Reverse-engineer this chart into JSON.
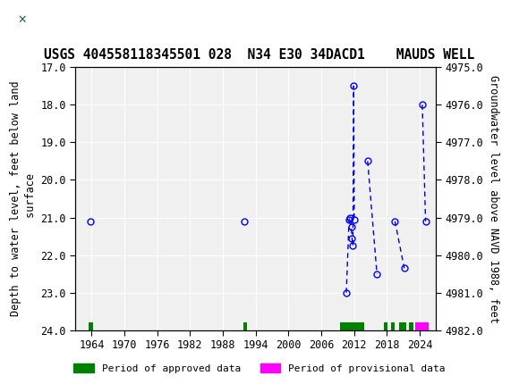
{
  "title": "USGS 404558118345501 028  N34 E30 34DACD1    MAUDS WELL",
  "ylabel_left": "Depth to water level, feet below land\n surface",
  "ylabel_right": "Groundwater level above NAVD 1988, feet",
  "xlim": [
    1961,
    2027
  ],
  "ylim_left": [
    17.0,
    24.0
  ],
  "ylim_right": [
    4982.0,
    4975.0
  ],
  "xticks": [
    1964,
    1970,
    1976,
    1982,
    1988,
    1994,
    2000,
    2006,
    2012,
    2018,
    2024
  ],
  "yticks_left": [
    17.0,
    18.0,
    19.0,
    20.0,
    21.0,
    22.0,
    23.0,
    24.0
  ],
  "yticks_right": [
    4982.0,
    4981.0,
    4980.0,
    4979.0,
    4978.0,
    4977.0,
    4976.0,
    4975.0
  ],
  "data_points_x": [
    1963.7,
    1992.0,
    2010.6,
    2011.1,
    2011.3,
    2011.5,
    2011.65,
    2011.8,
    2011.95,
    2012.05,
    2014.5,
    2016.2,
    2019.5,
    2021.2,
    2024.5,
    2025.1
  ],
  "data_points_y": [
    21.1,
    21.1,
    23.0,
    21.05,
    21.0,
    21.25,
    21.55,
    21.75,
    17.5,
    21.05,
    19.5,
    22.5,
    21.1,
    22.35,
    18.0,
    21.1
  ],
  "segments": [
    {
      "indices": [
        0
      ],
      "connect_to": null
    },
    {
      "indices": [
        1
      ],
      "connect_to": null
    },
    {
      "indices": [
        2,
        3,
        4,
        5,
        6,
        7,
        8,
        9
      ],
      "connect_to": null
    },
    {
      "indices": [
        10,
        11
      ],
      "connect_to": null
    },
    {
      "indices": [
        12,
        13
      ],
      "connect_to": null
    },
    {
      "indices": [
        14,
        15
      ],
      "connect_to": null
    }
  ],
  "approved_periods": [
    [
      1963.4,
      1964.3
    ],
    [
      1991.7,
      1992.4
    ],
    [
      2009.5,
      2013.8
    ],
    [
      2017.5,
      2018.2
    ],
    [
      2018.7,
      2019.5
    ],
    [
      2020.2,
      2021.5
    ],
    [
      2022.0,
      2022.9
    ]
  ],
  "provisional_periods": [
    [
      2023.2,
      2025.6
    ]
  ],
  "approved_color": "#008000",
  "provisional_color": "#ff00ff",
  "point_color": "#0000ff",
  "line_color": "#0000cd",
  "bg_color": "#f0f0f0",
  "header_bg": "#1b6b3a",
  "title_fontsize": 10.5,
  "tick_fontsize": 8.5,
  "label_fontsize": 8.5
}
